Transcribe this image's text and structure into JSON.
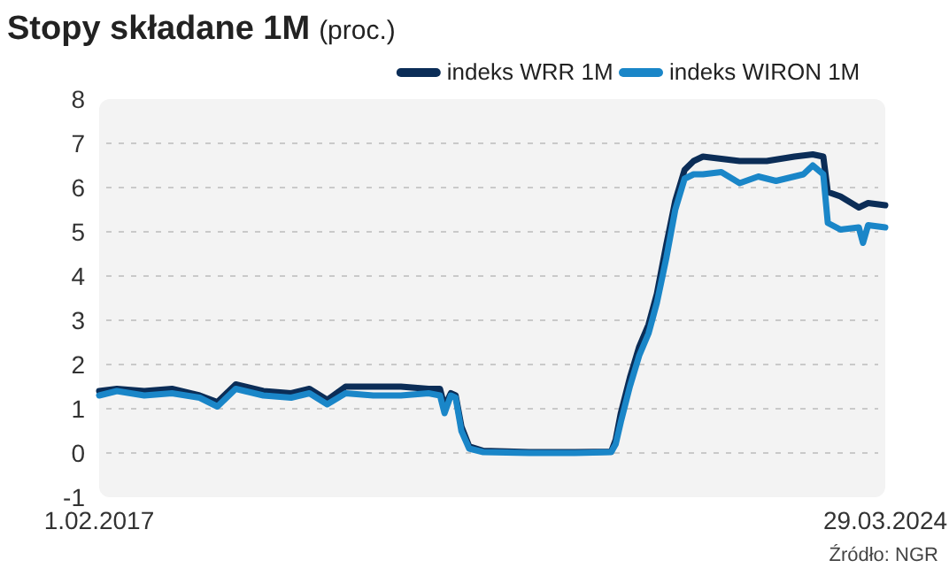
{
  "chart_data": {
    "type": "line",
    "title": "Stopy składane 1M",
    "subtitle": "(proc.)",
    "annotations": [
      "Źródło: NGR"
    ],
    "xlim": [
      "2017-02-01",
      "2024-03-29"
    ],
    "xticks": [
      {
        "value": "2017-02-01",
        "label": "1.02.2017"
      },
      {
        "value": "2024-03-29",
        "label": "29.03.2024"
      }
    ],
    "ylim": [
      -1,
      8
    ],
    "yticks": [
      -1,
      0,
      1,
      2,
      3,
      4,
      5,
      6,
      7,
      8
    ],
    "grid": "y",
    "legend": "top right",
    "line_style": "solid",
    "marker": "none",
    "series": [
      {
        "name": "indeks WRR 1M",
        "color": "#0b2d57",
        "x": [
          "2017-02-01",
          "2017-04-01",
          "2017-07-01",
          "2017-10-01",
          "2018-01-01",
          "2018-03-01",
          "2018-05-01",
          "2018-08-01",
          "2018-11-01",
          "2019-01-01",
          "2019-03-01",
          "2019-05-01",
          "2019-08-01",
          "2019-11-01",
          "2020-02-01",
          "2020-03-10",
          "2020-03-25",
          "2020-04-15",
          "2020-05-01",
          "2020-05-20",
          "2020-06-15",
          "2020-08-01",
          "2021-01-01",
          "2021-06-01",
          "2021-09-30",
          "2021-10-15",
          "2021-11-01",
          "2021-12-01",
          "2022-01-01",
          "2022-02-01",
          "2022-03-01",
          "2022-04-01",
          "2022-05-01",
          "2022-06-01",
          "2022-07-01",
          "2022-08-01",
          "2022-10-01",
          "2022-12-01",
          "2023-03-01",
          "2023-06-01",
          "2023-08-01",
          "2023-09-05",
          "2023-09-20",
          "2023-11-01",
          "2024-01-01",
          "2024-02-01",
          "2024-03-29"
        ],
        "values": [
          1.4,
          1.45,
          1.4,
          1.45,
          1.3,
          1.15,
          1.55,
          1.4,
          1.35,
          1.45,
          1.2,
          1.5,
          1.5,
          1.5,
          1.45,
          1.45,
          1.05,
          1.35,
          1.3,
          0.6,
          0.15,
          0.05,
          0.02,
          0.02,
          0.03,
          0.3,
          0.9,
          1.7,
          2.4,
          2.9,
          3.6,
          4.7,
          5.7,
          6.4,
          6.6,
          6.7,
          6.65,
          6.6,
          6.6,
          6.7,
          6.75,
          6.7,
          5.9,
          5.8,
          5.55,
          5.65,
          5.6
        ]
      },
      {
        "name": "indeks WIRON 1M",
        "color": "#1a86c8",
        "x": [
          "2017-02-01",
          "2017-04-01",
          "2017-07-01",
          "2017-10-01",
          "2018-01-01",
          "2018-03-01",
          "2018-05-01",
          "2018-08-01",
          "2018-11-01",
          "2019-01-01",
          "2019-03-01",
          "2019-05-01",
          "2019-08-01",
          "2019-11-01",
          "2020-02-01",
          "2020-03-10",
          "2020-03-25",
          "2020-04-15",
          "2020-05-01",
          "2020-05-20",
          "2020-06-15",
          "2020-08-01",
          "2021-01-01",
          "2021-06-01",
          "2021-09-30",
          "2021-10-15",
          "2021-11-01",
          "2021-12-01",
          "2022-01-01",
          "2022-02-01",
          "2022-03-01",
          "2022-04-01",
          "2022-05-01",
          "2022-06-01",
          "2022-07-01",
          "2022-08-01",
          "2022-10-01",
          "2022-12-01",
          "2023-02-01",
          "2023-04-01",
          "2023-07-01",
          "2023-08-01",
          "2023-09-05",
          "2023-09-20",
          "2023-11-01",
          "2024-01-01",
          "2024-01-15",
          "2024-02-01",
          "2024-03-29"
        ],
        "values": [
          1.3,
          1.4,
          1.3,
          1.35,
          1.25,
          1.05,
          1.45,
          1.3,
          1.25,
          1.35,
          1.1,
          1.35,
          1.3,
          1.3,
          1.35,
          1.3,
          0.9,
          1.3,
          1.25,
          0.5,
          0.1,
          0.02,
          0,
          0,
          0.02,
          0.2,
          0.7,
          1.5,
          2.2,
          2.7,
          3.4,
          4.4,
          5.5,
          6.2,
          6.3,
          6.3,
          6.35,
          6.1,
          6.25,
          6.15,
          6.3,
          6.5,
          6.3,
          5.2,
          5.05,
          5.1,
          4.75,
          5.15,
          5.1
        ]
      }
    ]
  }
}
